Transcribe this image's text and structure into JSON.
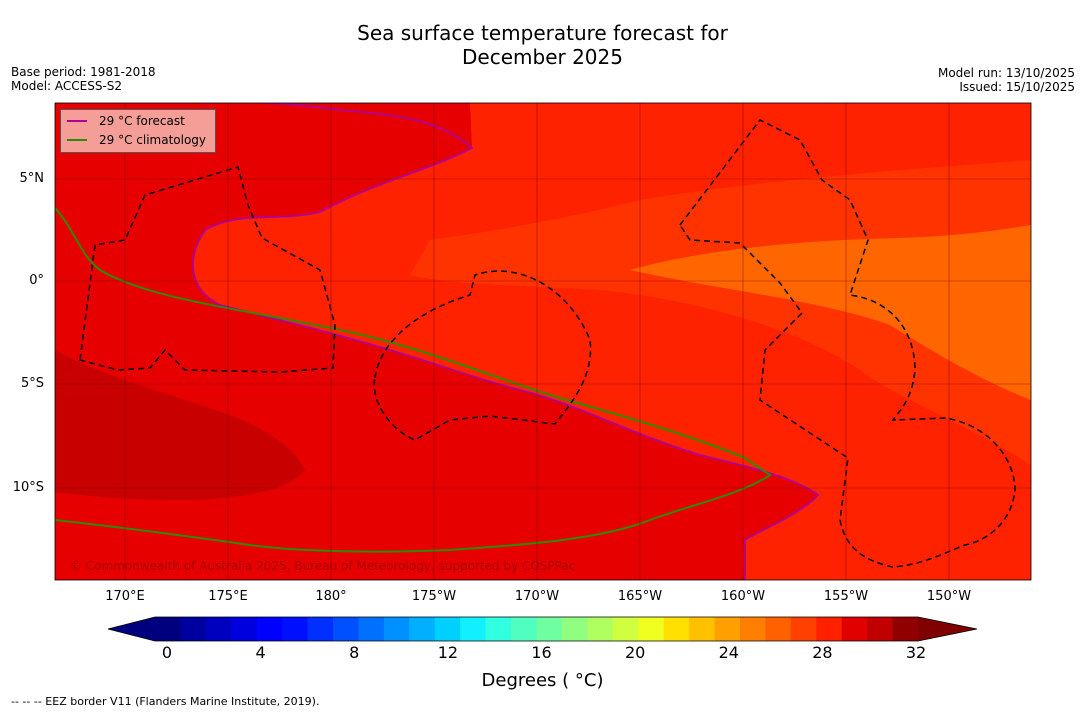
{
  "title": {
    "line1": "Sea surface temperature forecast for",
    "line2": "December 2025"
  },
  "meta_left": {
    "base_period": "Base period: 1981-2018",
    "model": "Model: ACCESS-S2"
  },
  "meta_right": {
    "model_run": "Model run: 13/10/2025",
    "issued": "Issued: 15/10/2025"
  },
  "legend": {
    "forecast_label": "29 °C  forecast",
    "forecast_color": "#b0009c",
    "climatology_label": "29 °C  climatology",
    "climatology_color": "#2e8b00"
  },
  "lat_labels": [
    "5°N",
    "0°",
    "5°S",
    "10°S"
  ],
  "lon_labels": [
    "170°E",
    "175°E",
    "180°",
    "175°W",
    "170°W",
    "165°W",
    "160°W",
    "155°W",
    "150°W"
  ],
  "copyright": "© Commonwealth of Australia 2025, Bureau of Meteorology, supported by COSPPac",
  "colorbar": {
    "ticks": [
      "0",
      "4",
      "8",
      "12",
      "16",
      "20",
      "24",
      "28",
      "32"
    ],
    "title": "Degrees ( °C)",
    "colors": [
      "#00007f",
      "#00009f",
      "#0000bf",
      "#0000df",
      "#0000ff",
      "#0010ff",
      "#0030ff",
      "#0050ff",
      "#0070ff",
      "#0090ff",
      "#00b0ff",
      "#00d0ff",
      "#10f0ff",
      "#30ffe0",
      "#50ffc0",
      "#70ffa0",
      "#90ff80",
      "#b0ff60",
      "#d0ff40",
      "#f0ff20",
      "#ffe000",
      "#ffc000",
      "#ffa000",
      "#ff8000",
      "#ff6000",
      "#ff4000",
      "#ff2000",
      "#e00000",
      "#c00000",
      "#900000"
    ],
    "under_color": "#00007f",
    "over_color": "#800000"
  },
  "map_colors": {
    "sst_27": "#ff6600",
    "sst_27_5": "#ff3300",
    "sst_28": "#ff2200",
    "sst_29": "#e60000",
    "sst_30": "#c80000",
    "land": "#888888",
    "eez_border": "#000000"
  },
  "footnote": "--  --  -- EEZ border V11 (Flanders Marine Institute, 2019)."
}
